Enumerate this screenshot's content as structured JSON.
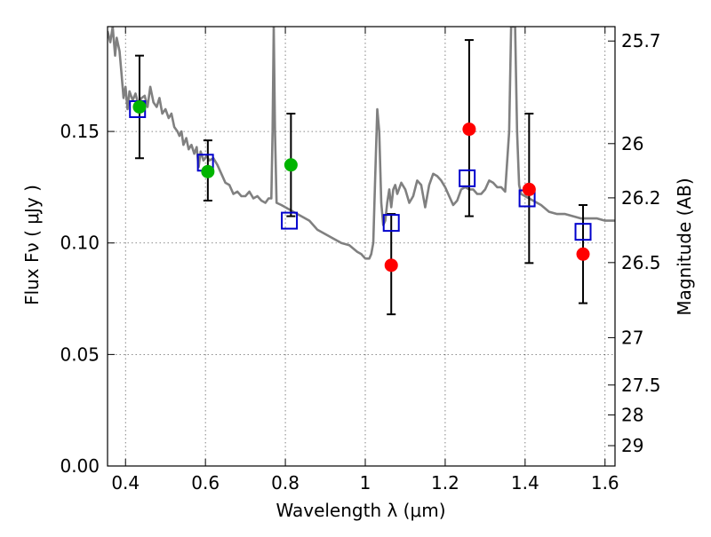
{
  "chart_data": {
    "type": "scatter",
    "title": "",
    "xlabel": "Wavelength  λ (μm)",
    "ylabel": "Flux  Fν  ( μJy )",
    "y2label": "Magnitude (AB)",
    "xlim": [
      0.355,
      1.625
    ],
    "ylim": [
      0.0,
      0.197
    ],
    "grid": true,
    "x_ticks": [
      0.4,
      0.6,
      0.8,
      1.0,
      1.2,
      1.4,
      1.6
    ],
    "x_tick_labels": [
      "0.4",
      "0.6",
      "0.8",
      "1",
      "1.2",
      "1.4",
      "1.6"
    ],
    "y_ticks": [
      0.0,
      0.05,
      0.1,
      0.15
    ],
    "y_tick_labels": [
      "0.00",
      "0.05",
      "0.10",
      "0.15"
    ],
    "y2_ticks": [
      {
        "mag": 25.7,
        "label": "25.7"
      },
      {
        "mag": 26.0,
        "label": "26"
      },
      {
        "mag": 26.2,
        "label": "26.2"
      },
      {
        "mag": 26.5,
        "label": "26.5"
      },
      {
        "mag": 27.0,
        "label": "27"
      },
      {
        "mag": 27.5,
        "label": "27.5"
      },
      {
        "mag": 28.0,
        "label": "28"
      },
      {
        "mag": 29.0,
        "label": "29"
      }
    ],
    "colors": {
      "model_line": "#808080",
      "observed_green": "#00b400",
      "observed_red": "#ff0000",
      "model_box": "#0000cc",
      "errorbar": "#000000"
    },
    "series": [
      {
        "kind": "observed",
        "color": "green",
        "points": [
          {
            "x": 0.435,
            "y": 0.161,
            "err_lo": 0.138,
            "err_hi": 0.184
          },
          {
            "x": 0.606,
            "y": 0.132,
            "err_lo": 0.119,
            "err_hi": 0.146
          },
          {
            "x": 0.814,
            "y": 0.135,
            "err_lo": 0.112,
            "err_hi": 0.158
          }
        ]
      },
      {
        "kind": "observed",
        "color": "red",
        "points": [
          {
            "x": 1.065,
            "y": 0.09,
            "err_lo": 0.068,
            "err_hi": 0.113
          },
          {
            "x": 1.26,
            "y": 0.151,
            "err_lo": 0.112,
            "err_hi": 0.191
          },
          {
            "x": 1.41,
            "y": 0.124,
            "err_lo": 0.091,
            "err_hi": 0.158
          },
          {
            "x": 1.545,
            "y": 0.095,
            "err_lo": 0.073,
            "err_hi": 0.117
          }
        ]
      },
      {
        "kind": "model_photometry",
        "points": [
          {
            "x": 0.43,
            "y": 0.16
          },
          {
            "x": 0.6,
            "y": 0.136
          },
          {
            "x": 0.81,
            "y": 0.11
          },
          {
            "x": 1.065,
            "y": 0.109
          },
          {
            "x": 1.255,
            "y": 0.129
          },
          {
            "x": 1.405,
            "y": 0.12
          },
          {
            "x": 1.545,
            "y": 0.105
          }
        ]
      },
      {
        "kind": "model_spectrum",
        "points": [
          [
            0.355,
            0.195
          ],
          [
            0.362,
            0.19
          ],
          [
            0.368,
            0.197
          ],
          [
            0.374,
            0.184
          ],
          [
            0.378,
            0.192
          ],
          [
            0.385,
            0.186
          ],
          [
            0.39,
            0.176
          ],
          [
            0.395,
            0.165
          ],
          [
            0.4,
            0.17
          ],
          [
            0.405,
            0.16
          ],
          [
            0.41,
            0.168
          ],
          [
            0.418,
            0.164
          ],
          [
            0.425,
            0.167
          ],
          [
            0.432,
            0.162
          ],
          [
            0.44,
            0.165
          ],
          [
            0.448,
            0.166
          ],
          [
            0.455,
            0.161
          ],
          [
            0.462,
            0.17
          ],
          [
            0.47,
            0.163
          ],
          [
            0.478,
            0.161
          ],
          [
            0.485,
            0.165
          ],
          [
            0.492,
            0.158
          ],
          [
            0.5,
            0.16
          ],
          [
            0.508,
            0.156
          ],
          [
            0.515,
            0.158
          ],
          [
            0.522,
            0.152
          ],
          [
            0.53,
            0.15
          ],
          [
            0.535,
            0.148
          ],
          [
            0.54,
            0.15
          ],
          [
            0.545,
            0.144
          ],
          [
            0.552,
            0.147
          ],
          [
            0.558,
            0.142
          ],
          [
            0.565,
            0.144
          ],
          [
            0.572,
            0.14
          ],
          [
            0.578,
            0.143
          ],
          [
            0.583,
            0.134
          ],
          [
            0.588,
            0.141
          ],
          [
            0.595,
            0.137
          ],
          [
            0.603,
            0.139
          ],
          [
            0.61,
            0.137
          ],
          [
            0.62,
            0.138
          ],
          [
            0.63,
            0.135
          ],
          [
            0.64,
            0.131
          ],
          [
            0.65,
            0.127
          ],
          [
            0.66,
            0.126
          ],
          [
            0.67,
            0.122
          ],
          [
            0.68,
            0.123
          ],
          [
            0.69,
            0.121
          ],
          [
            0.7,
            0.121
          ],
          [
            0.71,
            0.123
          ],
          [
            0.72,
            0.12
          ],
          [
            0.73,
            0.121
          ],
          [
            0.74,
            0.119
          ],
          [
            0.75,
            0.118
          ],
          [
            0.758,
            0.12
          ],
          [
            0.765,
            0.12
          ],
          [
            0.768,
            0.15
          ],
          [
            0.771,
            0.197
          ],
          [
            0.774,
            0.15
          ],
          [
            0.778,
            0.118
          ],
          [
            0.79,
            0.117
          ],
          [
            0.8,
            0.116
          ],
          [
            0.82,
            0.114
          ],
          [
            0.84,
            0.112
          ],
          [
            0.86,
            0.11
          ],
          [
            0.88,
            0.106
          ],
          [
            0.9,
            0.104
          ],
          [
            0.92,
            0.102
          ],
          [
            0.94,
            0.1
          ],
          [
            0.96,
            0.099
          ],
          [
            0.98,
            0.096
          ],
          [
            0.99,
            0.095
          ],
          [
            1.0,
            0.093
          ],
          [
            1.01,
            0.093
          ],
          [
            1.015,
            0.095
          ],
          [
            1.02,
            0.1
          ],
          [
            1.025,
            0.13
          ],
          [
            1.03,
            0.16
          ],
          [
            1.035,
            0.15
          ],
          [
            1.04,
            0.118
          ],
          [
            1.045,
            0.108
          ],
          [
            1.05,
            0.11
          ],
          [
            1.055,
            0.118
          ],
          [
            1.06,
            0.124
          ],
          [
            1.065,
            0.116
          ],
          [
            1.07,
            0.124
          ],
          [
            1.075,
            0.126
          ],
          [
            1.08,
            0.122
          ],
          [
            1.09,
            0.127
          ],
          [
            1.1,
            0.124
          ],
          [
            1.11,
            0.118
          ],
          [
            1.12,
            0.121
          ],
          [
            1.13,
            0.128
          ],
          [
            1.14,
            0.126
          ],
          [
            1.15,
            0.116
          ],
          [
            1.16,
            0.126
          ],
          [
            1.17,
            0.131
          ],
          [
            1.18,
            0.13
          ],
          [
            1.19,
            0.128
          ],
          [
            1.2,
            0.125
          ],
          [
            1.21,
            0.121
          ],
          [
            1.22,
            0.117
          ],
          [
            1.23,
            0.119
          ],
          [
            1.24,
            0.124
          ],
          [
            1.25,
            0.125
          ],
          [
            1.26,
            0.124
          ],
          [
            1.27,
            0.124
          ],
          [
            1.28,
            0.122
          ],
          [
            1.29,
            0.122
          ],
          [
            1.3,
            0.124
          ],
          [
            1.31,
            0.128
          ],
          [
            1.32,
            0.127
          ],
          [
            1.33,
            0.125
          ],
          [
            1.34,
            0.125
          ],
          [
            1.35,
            0.123
          ],
          [
            1.36,
            0.15
          ],
          [
            1.365,
            0.197
          ],
          [
            1.375,
            0.197
          ],
          [
            1.38,
            0.15
          ],
          [
            1.385,
            0.126
          ],
          [
            1.39,
            0.122
          ],
          [
            1.4,
            0.121
          ],
          [
            1.42,
            0.119
          ],
          [
            1.44,
            0.117
          ],
          [
            1.46,
            0.114
          ],
          [
            1.48,
            0.113
          ],
          [
            1.5,
            0.113
          ],
          [
            1.52,
            0.112
          ],
          [
            1.54,
            0.111
          ],
          [
            1.56,
            0.111
          ],
          [
            1.58,
            0.111
          ],
          [
            1.6,
            0.11
          ],
          [
            1.625,
            0.11
          ]
        ]
      }
    ]
  }
}
